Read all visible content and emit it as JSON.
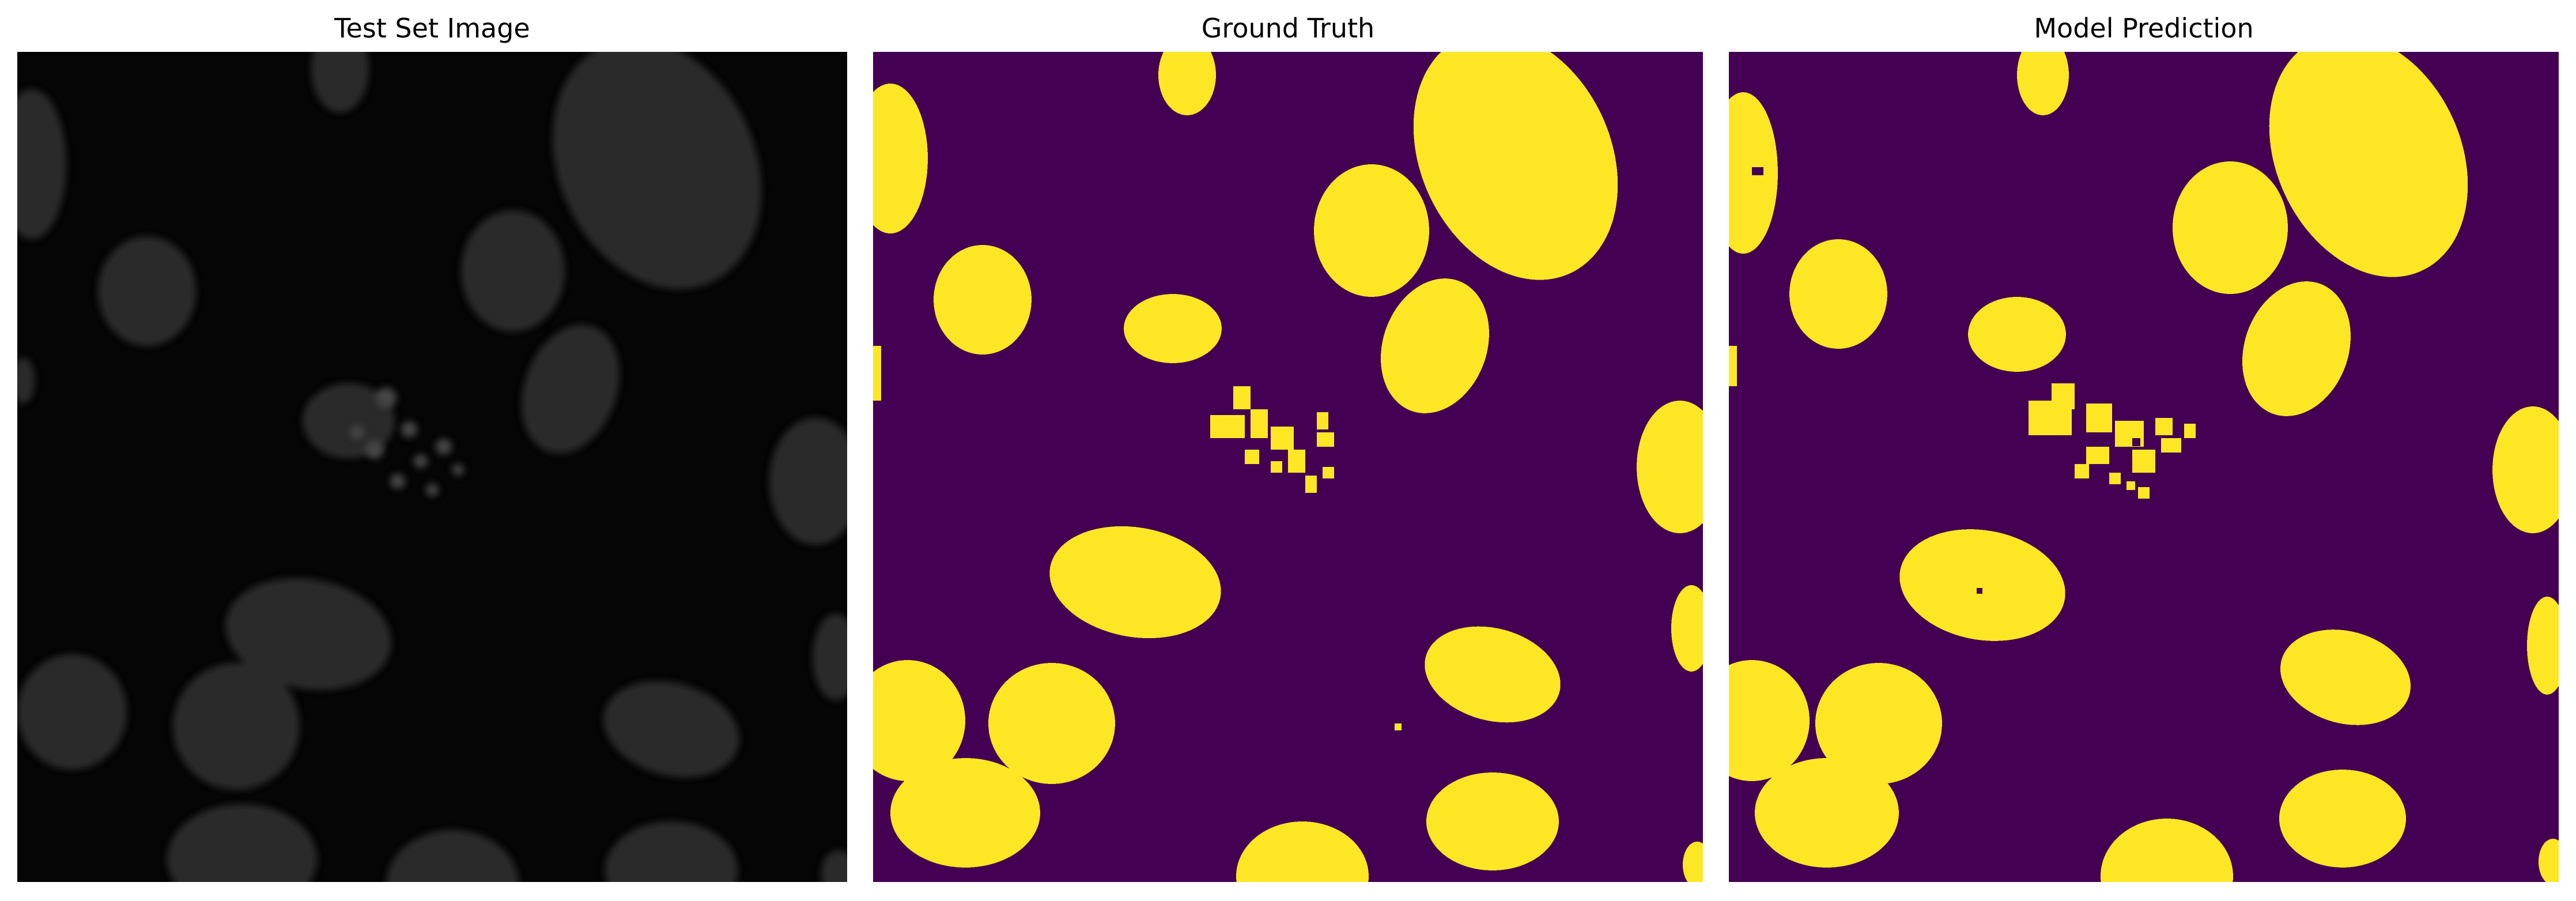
{
  "panels": [
    {
      "id": "test-set-image",
      "title": "Test Set Image",
      "colormap": "grayscale",
      "background": "#050505",
      "blob_fill": "#2a2a2a"
    },
    {
      "id": "ground-truth",
      "title": "Ground Truth",
      "colormap": "viridis-binary",
      "background": "#440154",
      "blob_fill": "#fde725"
    },
    {
      "id": "model-prediction",
      "title": "Model Prediction",
      "colormap": "viridis-binary",
      "background": "#440154",
      "blob_fill": "#fde725"
    }
  ]
}
